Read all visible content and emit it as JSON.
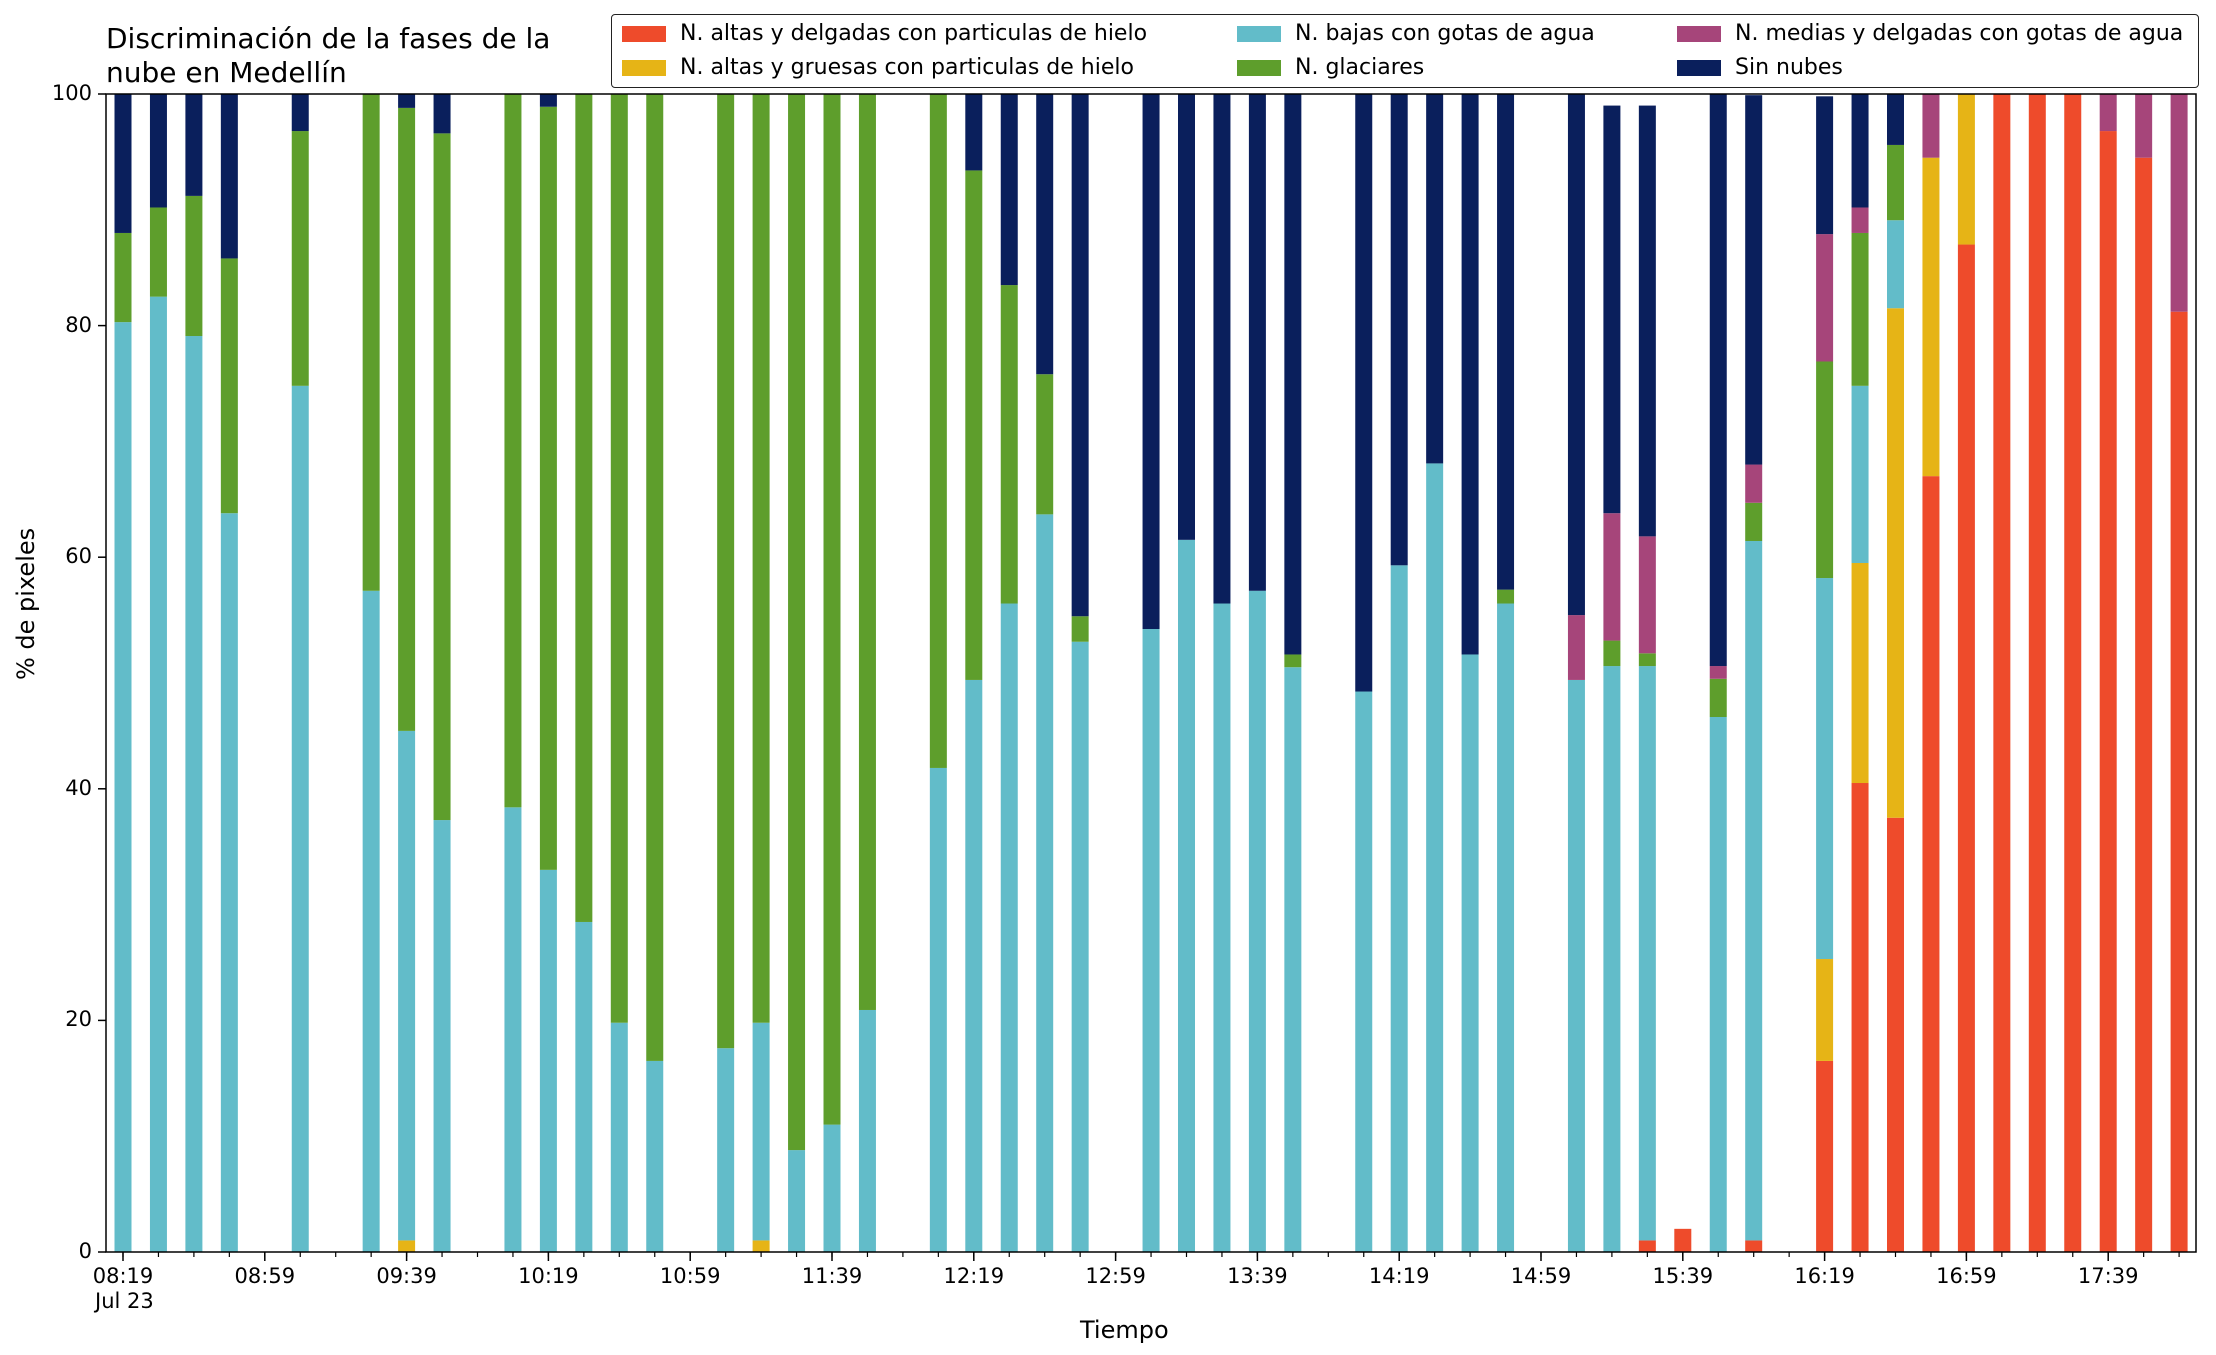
{
  "chart_data": {
    "type": "bar",
    "title": "Discriminación de la fases de la\nnube en Medellín",
    "xlabel": "Tiempo",
    "ylabel": "% de pixeles",
    "ylim": [
      0,
      100
    ],
    "yticks": [
      "0",
      "20",
      "40",
      "60",
      "80",
      "100"
    ],
    "x_start": "08:19",
    "x_step_minutes": 10,
    "x_end": "17:59",
    "xtick_labels": [
      "08:19",
      "08:59",
      "09:39",
      "10:19",
      "10:59",
      "11:39",
      "12:19",
      "12:59",
      "13:39",
      "14:19",
      "14:59",
      "15:39",
      "16:19",
      "16:59",
      "17:39"
    ],
    "xtick_date": "Jul 23",
    "grid": false,
    "legend_position": "top",
    "stacked": true,
    "series": [
      {
        "name": "N. altas y delgadas con particulas de hielo",
        "color": "#EE4B2B",
        "values": [
          0,
          0,
          0,
          0,
          0,
          0,
          0,
          0,
          0,
          0,
          0,
          0,
          0,
          0,
          0,
          0,
          0,
          0,
          0,
          0,
          0,
          0,
          0,
          0,
          0,
          0,
          0,
          0,
          0,
          0,
          0,
          0,
          0,
          0,
          0,
          0,
          0,
          0,
          0,
          0,
          0,
          0,
          0,
          1,
          2,
          0,
          1,
          0,
          16.5,
          40.5,
          37.5,
          67,
          87,
          100,
          100,
          100,
          96.8,
          94.5,
          81.2
        ]
      },
      {
        "name": "N. altas y gruesas con particulas de hielo",
        "color": "#E6B416",
        "values": [
          0,
          0,
          0,
          0,
          0,
          0,
          0,
          0,
          1,
          0,
          0,
          0,
          0,
          0,
          0,
          0,
          0,
          0,
          1,
          0,
          0,
          0,
          0,
          0,
          0,
          0,
          0,
          0,
          0,
          0,
          0,
          0,
          0,
          0,
          0,
          0,
          0,
          0,
          0,
          0,
          0,
          0,
          0,
          0,
          0,
          0,
          0,
          0,
          8.8,
          19,
          44,
          27.5,
          13,
          0,
          0,
          0,
          0,
          0,
          0
        ]
      },
      {
        "name": "N. bajas con gotas de agua",
        "color": "#62BCC9",
        "values": [
          80.3,
          82.5,
          79.1,
          63.8,
          0,
          74.8,
          0,
          57.1,
          44,
          37.3,
          0,
          38.4,
          33,
          28.5,
          19.8,
          16.5,
          0,
          17.6,
          18.8,
          8.8,
          11,
          20.9,
          0,
          41.8,
          49.4,
          56,
          63.7,
          52.7,
          0,
          53.8,
          61.5,
          56,
          57.1,
          50.5,
          0,
          48.4,
          59.3,
          68.1,
          51.6,
          56,
          0,
          49.4,
          50.6,
          49.6,
          0,
          46.2,
          60.4,
          0,
          32.9,
          15.3,
          7.6,
          0,
          0,
          0,
          0,
          0,
          0,
          0,
          0
        ]
      },
      {
        "name": "N. glaciares",
        "color": "#5E9E2C",
        "values": [
          7.7,
          7.7,
          12.1,
          22,
          0,
          22,
          0,
          42.9,
          53.8,
          59.3,
          0,
          61.6,
          65.9,
          71.5,
          80.2,
          83.5,
          0,
          82.4,
          80.2,
          91.2,
          89,
          79.1,
          0,
          58.2,
          44,
          27.5,
          12.1,
          2.2,
          0,
          0,
          0,
          0,
          0,
          1.1,
          0,
          0,
          0,
          0,
          0,
          1.2,
          0,
          0,
          2.2,
          1.1,
          0,
          3.3,
          3.3,
          0,
          18.7,
          13.2,
          6.5,
          0,
          0,
          0,
          0,
          0,
          0,
          0,
          0
        ]
      },
      {
        "name": "N. medias y delgadas con gotas de agua",
        "color": "#A6457A",
        "values": [
          0,
          0,
          0,
          0,
          0,
          0,
          0,
          0,
          0,
          0,
          0,
          0,
          0,
          0,
          0,
          0,
          0,
          0,
          0,
          0,
          0,
          0,
          0,
          0,
          0,
          0,
          0,
          0,
          0,
          0,
          0,
          0,
          0,
          0,
          0,
          0,
          0,
          0,
          0,
          0,
          0,
          5.6,
          11,
          10.1,
          0,
          1.1,
          3.3,
          0,
          11,
          2.2,
          0,
          5.5,
          0,
          0,
          0,
          0,
          3.2,
          5.5,
          18.8
        ]
      },
      {
        "name": "Sin nubes",
        "color": "#0A1F5C",
        "values": [
          12,
          9.8,
          8.8,
          14.2,
          0,
          3.2,
          0,
          0,
          1.2,
          3.4,
          0,
          0,
          1.1,
          0,
          0,
          0,
          0,
          0,
          0,
          0,
          0,
          0,
          0,
          0,
          6.6,
          16.5,
          24.2,
          45.1,
          0,
          46.2,
          38.5,
          44,
          42.9,
          48.4,
          0,
          51.6,
          40.7,
          31.9,
          48.4,
          42.8,
          0,
          45,
          35.2,
          37.2,
          0,
          49.4,
          31.9,
          0,
          11.9,
          9.8,
          4.4,
          0,
          0,
          0,
          0,
          0,
          0,
          0,
          0
        ]
      }
    ]
  }
}
